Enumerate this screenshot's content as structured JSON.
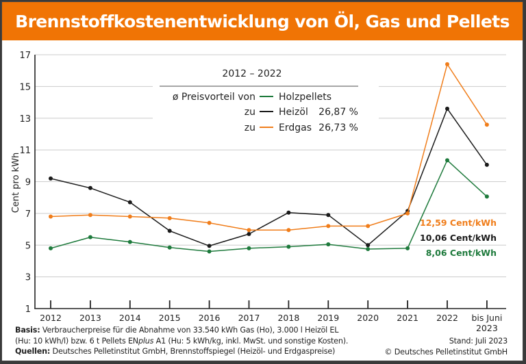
{
  "header": {
    "title": "Brennstoffkostenentwicklung von Öl, Gas und Pellets"
  },
  "legend": {
    "period": "2012 – 2022",
    "prefix": "ø Preisvorteil von",
    "pellets_label": "Holzpellets",
    "zu1": "zu",
    "oil_label": "Heizöl",
    "oil_value": "26,87 %",
    "zu2": "zu",
    "gas_label": "Erdgas",
    "gas_value": "26,73 %"
  },
  "annotations": {
    "gas_latest": "12,59 Cent/kWh",
    "oil_latest": "10,06 Cent/kWh",
    "pellets_latest": "8,06 Cent/kWh"
  },
  "footer": {
    "basis_label": "Basis:",
    "basis_line1": " Verbraucherpreise für die Abnahme von 33.540 kWh Gas (Ho), 3.000 l Heizöl EL",
    "basis_line2a": "(Hu: 10 kWh/l) bzw. 6 t Pellets EN",
    "basis_line2_italic": "plus",
    "basis_line2b": " A1 (Hu: 5 kWh/kg, inkl. MwSt. und sonstige Kosten).",
    "sources_label": "Quellen:",
    "sources_text": " Deutsches Pelletinstitut GmbH, Brennstoffspiegel (Heizöl- und Erdgaspreise)",
    "stand": "Stand: Juli 2023",
    "copyright": "© Deutsches Pelletinstitut GmbH"
  },
  "colors": {
    "header": "#f07405",
    "oil": "#1a1a1a",
    "gas": "#f07d1a",
    "pellets": "#1e7a3c",
    "grid": "#cccccc"
  },
  "chart_data": {
    "type": "line",
    "title": "Brennstoffkostenentwicklung von Öl, Gas und Pellets",
    "xlabel": "",
    "ylabel": "Cent pro kWh",
    "ylim": [
      1,
      17
    ],
    "yticks": [
      1,
      3,
      5,
      7,
      9,
      11,
      13,
      15,
      17
    ],
    "grid": true,
    "categories": [
      "2012",
      "2013",
      "2014",
      "2015",
      "2016",
      "2017",
      "2018",
      "2019",
      "2020",
      "2021",
      "2022",
      "bis Juni 2023"
    ],
    "category_lines": [
      [
        "2012"
      ],
      [
        "2013"
      ],
      [
        "2014"
      ],
      [
        "2015"
      ],
      [
        "2016"
      ],
      [
        "2017"
      ],
      [
        "2018"
      ],
      [
        "2019"
      ],
      [
        "2020"
      ],
      [
        "2021"
      ],
      [
        "2022"
      ],
      [
        "bis Juni",
        "2023"
      ]
    ],
    "series": [
      {
        "name": "Heizöl",
        "color": "#1a1a1a",
        "values": [
          9.2,
          8.6,
          7.7,
          5.9,
          4.95,
          5.7,
          7.05,
          6.9,
          5.0,
          7.15,
          13.6,
          10.06
        ]
      },
      {
        "name": "Erdgas",
        "color": "#f07d1a",
        "values": [
          6.8,
          6.9,
          6.8,
          6.7,
          6.4,
          5.95,
          5.95,
          6.2,
          6.2,
          7.0,
          16.4,
          12.59
        ]
      },
      {
        "name": "Holzpellets",
        "color": "#1e7a3c",
        "values": [
          4.8,
          5.5,
          5.2,
          4.85,
          4.6,
          4.8,
          4.9,
          5.05,
          4.75,
          4.8,
          10.35,
          8.06
        ]
      }
    ],
    "legend_position": "top-center"
  }
}
